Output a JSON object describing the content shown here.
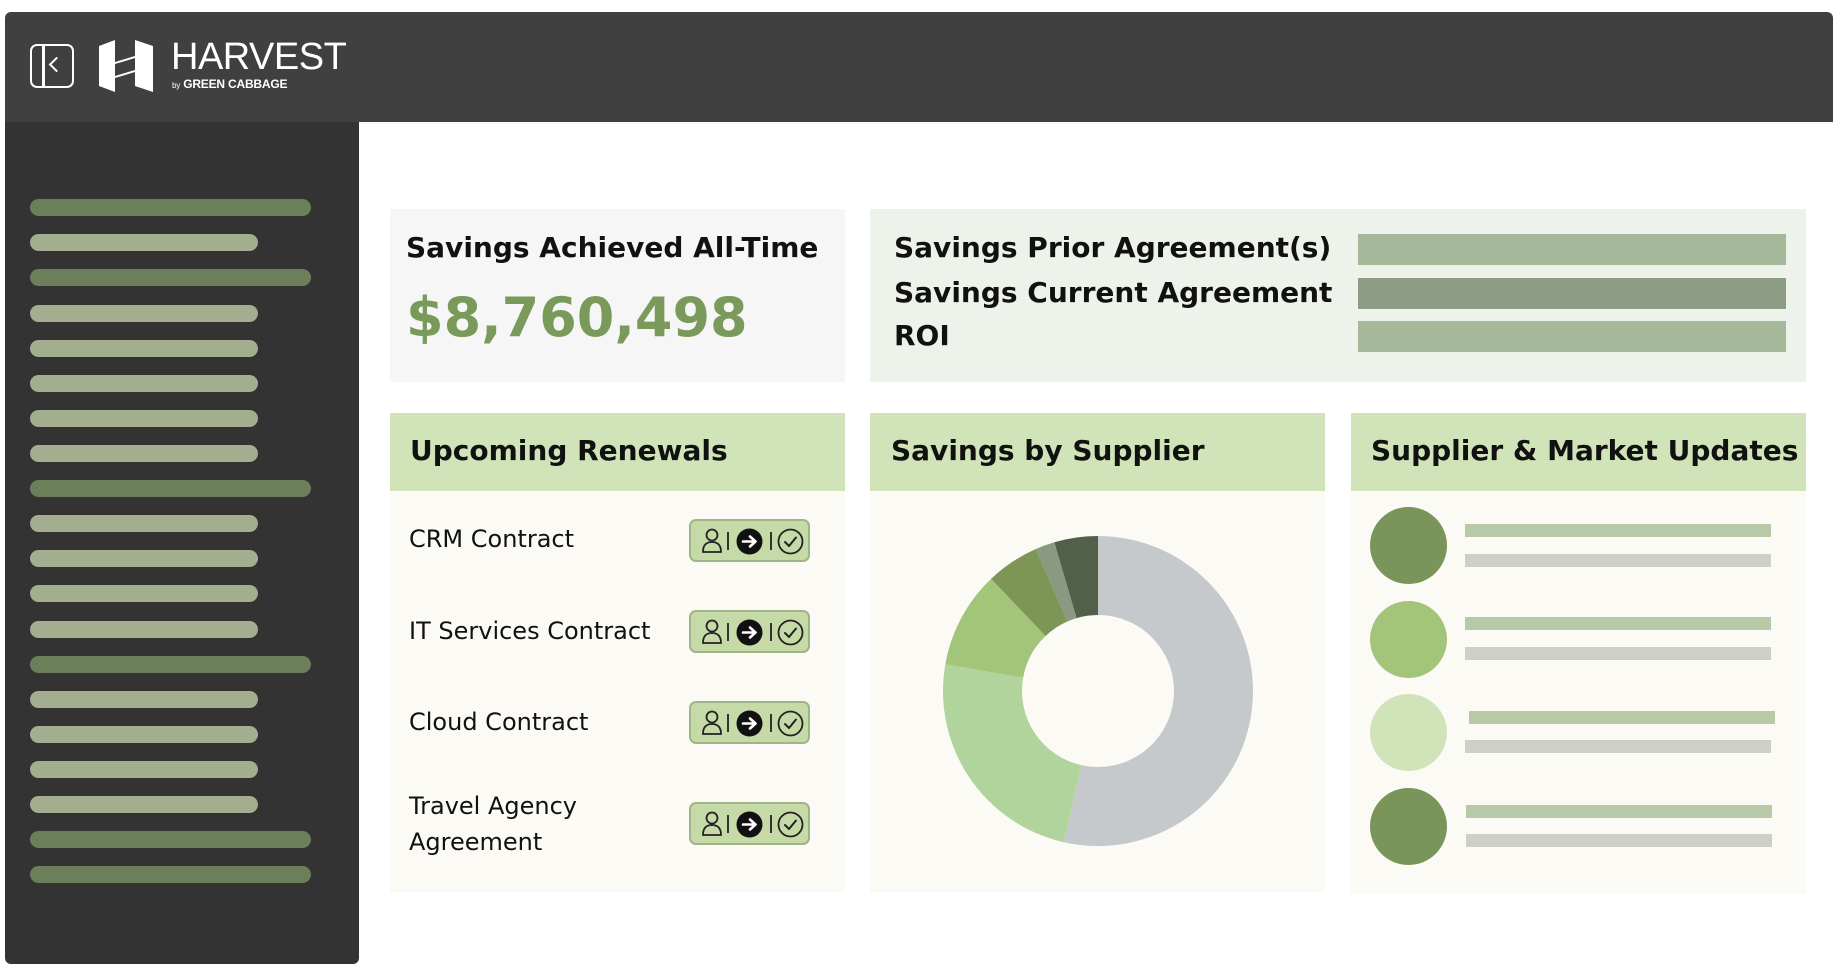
{
  "brand": {
    "name": "HARVEST",
    "sub_by": "by",
    "sub_name": "GREEN CABBAGE"
  },
  "savings": {
    "title": "Savings Achieved All-Time",
    "value": "$8,760,498"
  },
  "agreements": {
    "rows": [
      {
        "label": "Savings Prior Agreement(s)",
        "bar_color": "#a5b899"
      },
      {
        "label": "Savings Current Agreement",
        "bar_color": "#8d9d85"
      },
      {
        "label": "ROI",
        "bar_color": "#a5b899"
      }
    ]
  },
  "renewals": {
    "title": "Upcoming Renewals",
    "items": [
      {
        "line1": "CRM Contract",
        "line2": ""
      },
      {
        "line1": "IT Services Contract",
        "line2": ""
      },
      {
        "line1": "Cloud Contract",
        "line2": ""
      },
      {
        "line1": "Travel Agency",
        "line2": "Agreement"
      }
    ],
    "action_icons": [
      "user-icon",
      "arrow-right-icon",
      "check-circle-icon"
    ]
  },
  "supplier": {
    "title": "Savings by Supplier",
    "chart_data": {
      "type": "pie",
      "style": "donut",
      "slices": [
        {
          "value": 53,
          "color": "#c6c9cc"
        },
        {
          "value": 24,
          "color": "#b1d39c"
        },
        {
          "value": 10,
          "color": "#a3c57a"
        },
        {
          "value": 5.5,
          "color": "#7d9656"
        },
        {
          "value": 2,
          "color": "#8a9a82"
        },
        {
          "value": 4.5,
          "color": "#526049"
        }
      ]
    }
  },
  "updates": {
    "title": "Supplier & Market Updates",
    "dot_colors": [
      "#7a9559",
      "#a3c57a",
      "#d1e3b8",
      "#7a9559"
    ]
  },
  "sidebar": {
    "items": [
      {
        "style": "dark"
      },
      {
        "style": "light"
      },
      {
        "style": "dark"
      },
      {
        "style": "light"
      },
      {
        "style": "light"
      },
      {
        "style": "light"
      },
      {
        "style": "light"
      },
      {
        "style": "light"
      },
      {
        "style": "dark"
      },
      {
        "style": "light"
      },
      {
        "style": "light"
      },
      {
        "style": "light"
      },
      {
        "style": "light"
      },
      {
        "style": "dark"
      },
      {
        "style": "light"
      },
      {
        "style": "light"
      },
      {
        "style": "light"
      },
      {
        "style": "light"
      },
      {
        "style": "dark"
      },
      {
        "style": "dark"
      }
    ]
  },
  "colors": {
    "accent_green": "#7a9a5b",
    "header_green": "#d1e3b8",
    "topbar": "#404040",
    "sidebar": "#333333"
  }
}
